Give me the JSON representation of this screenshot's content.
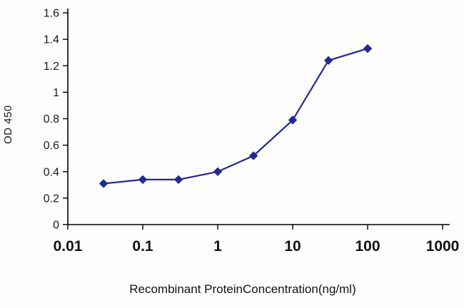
{
  "chart_data": {
    "type": "line",
    "title": "",
    "xlabel": "Recombinant ProteinConcentration(ng/ml)",
    "ylabel": "OD 450",
    "x_scale": "log",
    "xlim": [
      0.01,
      1000
    ],
    "x_ticks": [
      0.01,
      0.1,
      1,
      10,
      100,
      1000
    ],
    "x_tick_labels": [
      "0.01",
      "0.1",
      "1",
      "10",
      "100",
      "1000"
    ],
    "ylim": [
      0,
      1.6
    ],
    "y_ticks": [
      0,
      0.2,
      0.4,
      0.6,
      0.8,
      1,
      1.2,
      1.4,
      1.6
    ],
    "y_tick_labels": [
      "0",
      "0.2",
      "0.4",
      "0.6",
      "0.8",
      "1",
      "1.2",
      "1.4",
      "1.6"
    ],
    "grid": false,
    "legend": false,
    "series": [
      {
        "name": "OD450",
        "marker": "diamond",
        "color": "#232a8f",
        "x": [
          0.03,
          0.1,
          0.3,
          1,
          3,
          10,
          30,
          100
        ],
        "y": [
          0.31,
          0.34,
          0.34,
          0.4,
          0.52,
          0.79,
          1.24,
          1.33
        ]
      }
    ]
  }
}
